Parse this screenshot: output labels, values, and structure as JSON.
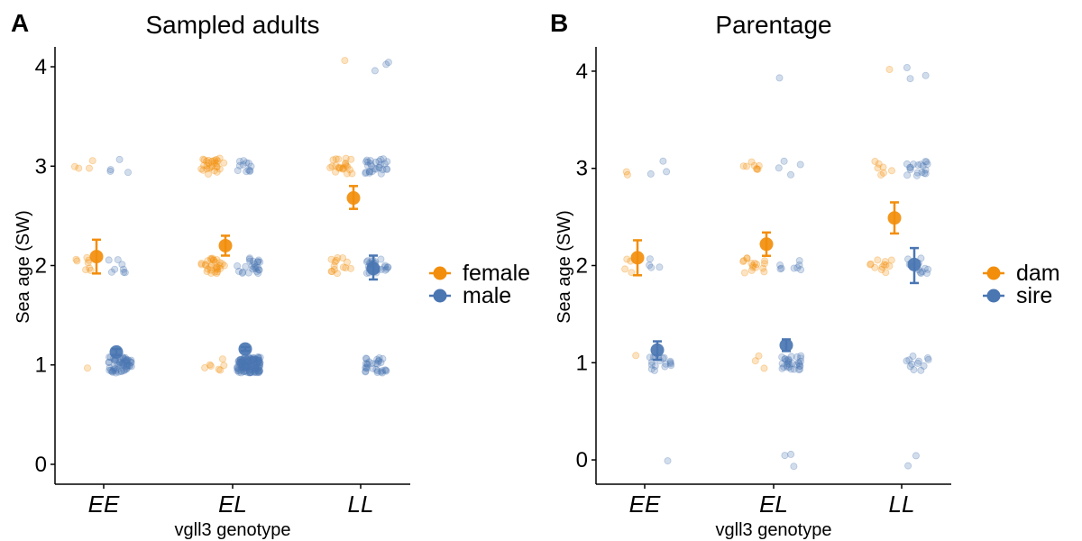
{
  "colors": {
    "female": "#f28e0c",
    "male": "#4a76b2",
    "axis": "#000000"
  },
  "chart_data": [
    {
      "type": "scatter",
      "panel_label": "A",
      "title": "Sampled adults",
      "xlabel": "vgll3 genotype",
      "ylabel": "Sea age (SW)",
      "categories": [
        "EE",
        "EL",
        "LL"
      ],
      "yticks": [
        "0",
        "1",
        "2",
        "3",
        "4"
      ],
      "ylim": [
        -0.2,
        4.2
      ],
      "legend": [
        "female",
        "male"
      ],
      "legend_position": "right",
      "grid": false,
      "series": [
        {
          "name": "female",
          "key": "female",
          "means": [
            2.09,
            2.2,
            2.68
          ],
          "errors": [
            [
              1.92,
              2.26
            ],
            [
              2.1,
              2.3
            ],
            [
              2.57,
              2.8
            ]
          ],
          "raw": [
            {
              "category": "EE",
              "counts": [
                0,
                1,
                8,
                4,
                0
              ]
            },
            {
              "category": "EL",
              "counts": [
                0,
                7,
                30,
                28,
                0
              ]
            },
            {
              "category": "LL",
              "counts": [
                0,
                0,
                14,
                22,
                1
              ]
            }
          ]
        },
        {
          "name": "male",
          "key": "male",
          "means": [
            1.13,
            1.16,
            1.97
          ],
          "errors": [
            [
              1.1,
              1.16
            ],
            [
              1.14,
              1.18
            ],
            [
              1.86,
              2.1
            ]
          ],
          "raw": [
            {
              "category": "EE",
              "counts": [
                0,
                60,
                8,
                4,
                0
              ]
            },
            {
              "category": "EL",
              "counts": [
                0,
                140,
                25,
                12,
                0
              ]
            },
            {
              "category": "LL",
              "counts": [
                0,
                30,
                25,
                28,
                3
              ]
            }
          ]
        }
      ]
    },
    {
      "type": "scatter",
      "panel_label": "B",
      "title": "Parentage",
      "xlabel": "vgll3 genotype",
      "ylabel": "Sea age (SW)",
      "categories": [
        "EE",
        "EL",
        "LL"
      ],
      "yticks": [
        "0",
        "1",
        "2",
        "3",
        "4"
      ],
      "ylim": [
        -0.25,
        4.25
      ],
      "legend": [
        "dam",
        "sire"
      ],
      "legend_position": "right",
      "grid": false,
      "series": [
        {
          "name": "dam",
          "key": "female",
          "means": [
            2.08,
            2.22,
            2.49
          ],
          "errors": [
            [
              1.9,
              2.26
            ],
            [
              2.1,
              2.34
            ],
            [
              2.33,
              2.65
            ]
          ],
          "raw": [
            {
              "category": "EE",
              "counts": [
                0,
                1,
                4,
                2,
                0
              ]
            },
            {
              "category": "EL",
              "counts": [
                0,
                3,
                16,
                8,
                0
              ]
            },
            {
              "category": "LL",
              "counts": [
                0,
                0,
                12,
                7,
                1
              ]
            }
          ]
        },
        {
          "name": "sire",
          "key": "male",
          "means": [
            1.13,
            1.18,
            2.01
          ],
          "errors": [
            [
              1.03,
              1.22
            ],
            [
              1.12,
              1.24
            ],
            [
              1.82,
              2.18
            ]
          ],
          "raw": [
            {
              "category": "EE",
              "counts": [
                1,
                18,
                4,
                3,
                0
              ]
            },
            {
              "category": "EL",
              "counts": [
                3,
                30,
                8,
                4,
                1
              ]
            },
            {
              "category": "LL",
              "counts": [
                2,
                12,
                12,
                18,
                3
              ]
            }
          ]
        }
      ]
    }
  ]
}
